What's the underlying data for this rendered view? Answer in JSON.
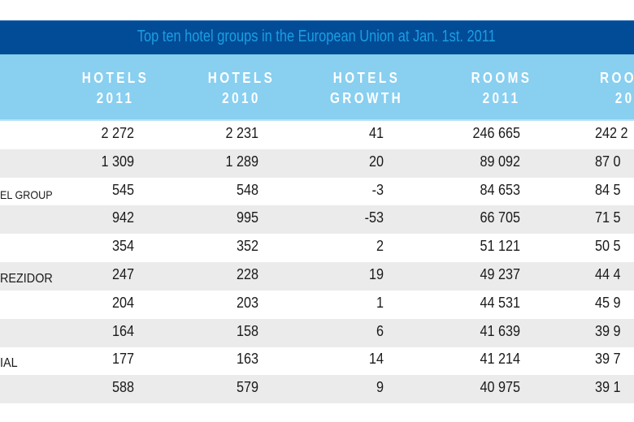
{
  "title": "Top ten hotel groups in the European Union at Jan. 1st. 2011",
  "colors": {
    "title_bg": "#024c97",
    "title_text": "#1b9ee3",
    "header_bg": "#88cff0",
    "row_alt": "#ebebeb"
  },
  "columns": [
    {
      "line1": "HOTELS",
      "line2": "2011"
    },
    {
      "line1": "HOTELS",
      "line2": "2010"
    },
    {
      "line1": "HOTELS",
      "line2": "GROWTH"
    },
    {
      "line1": "ROOMS",
      "line2": "2011"
    },
    {
      "line1": "ROO",
      "line2": "20"
    }
  ],
  "rows": [
    {
      "name": "",
      "hotels_2011": "2 272",
      "hotels_2010": "2 231",
      "growth": "41",
      "rooms_2011": "246 665",
      "rooms_2010": "242 2"
    },
    {
      "name": "",
      "hotels_2011": "1 309",
      "hotels_2010": "1 289",
      "growth": "20",
      "rooms_2011": "89 092",
      "rooms_2010": "87 0"
    },
    {
      "name": "EL GROUP",
      "hotels_2011": "545",
      "hotels_2010": "548",
      "growth": "-3",
      "rooms_2011": "84 653",
      "rooms_2010": "84 5"
    },
    {
      "name": "",
      "hotels_2011": "942",
      "hotels_2010": "995",
      "growth": "-53",
      "rooms_2011": "66 705",
      "rooms_2010": "71 5"
    },
    {
      "name": "",
      "hotels_2011": "354",
      "hotels_2010": "352",
      "growth": "2",
      "rooms_2011": "51 121",
      "rooms_2010": "50 5"
    },
    {
      "name": "REZIDOR",
      "hotels_2011": "247",
      "hotels_2010": "228",
      "growth": "19",
      "rooms_2011": "49 237",
      "rooms_2010": "44 4"
    },
    {
      "name": "",
      "hotels_2011": "204",
      "hotels_2010": "203",
      "growth": "1",
      "rooms_2011": "44 531",
      "rooms_2010": "45 9"
    },
    {
      "name": "",
      "hotels_2011": "164",
      "hotels_2010": "158",
      "growth": "6",
      "rooms_2011": "41 639",
      "rooms_2010": "39 9"
    },
    {
      "name": "IAL",
      "hotels_2011": "177",
      "hotels_2010": "163",
      "growth": "14",
      "rooms_2011": "41 214",
      "rooms_2010": "39 7"
    },
    {
      "name": "",
      "hotels_2011": "588",
      "hotels_2010": "579",
      "growth": "9",
      "rooms_2011": "40 975",
      "rooms_2010": "39 1"
    }
  ]
}
